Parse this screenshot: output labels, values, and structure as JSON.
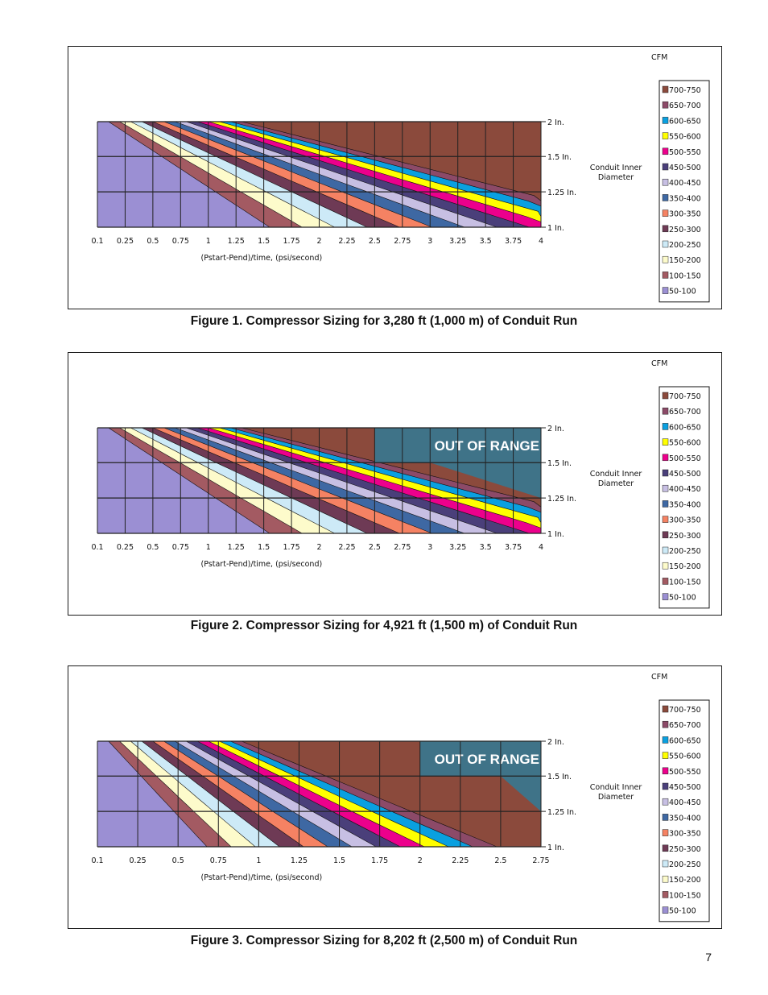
{
  "page": {
    "number": "7"
  },
  "legend": {
    "title": "CFM",
    "entries": [
      {
        "label": "700-750",
        "color": "#8b4a3c"
      },
      {
        "label": "650-700",
        "color": "#8c4a68"
      },
      {
        "label": "600-650",
        "color": "#0aa0e0"
      },
      {
        "label": "550-600",
        "color": "#ffff00"
      },
      {
        "label": "500-550",
        "color": "#ec008c"
      },
      {
        "label": "450-500",
        "color": "#4a3f7a"
      },
      {
        "label": "400-450",
        "color": "#c7bfe3"
      },
      {
        "label": "350-400",
        "color": "#3e68a3"
      },
      {
        "label": "300-350",
        "color": "#f58263"
      },
      {
        "label": "250-300",
        "color": "#6e3a55"
      },
      {
        "label": "200-250",
        "color": "#cdeaf7"
      },
      {
        "label": "150-200",
        "color": "#fdfbcb"
      },
      {
        "label": "100-150",
        "color": "#a35a62"
      },
      {
        "label": "50-100",
        "color": "#9b8fd3"
      }
    ]
  },
  "out_of_range": {
    "label": "OUT OF RANGE",
    "color": "#3f7388"
  },
  "chart_data": [
    {
      "type": "heatmap",
      "title": "Figure 1. Compressor Sizing for 3,280 ft (1,000 m) of Conduit Run",
      "xlabel": "(Pstart-Pend)/time, (psi/second)",
      "ylabel": "Conduit Inner Diameter",
      "x_ticks": [
        "0.1",
        "0.25",
        "0.5",
        "0.75",
        "1",
        "1.25",
        "1.5",
        "1.75",
        "2",
        "2.25",
        "2.5",
        "2.75",
        "3",
        "3.25",
        "3.5",
        "3.75",
        "4"
      ],
      "y_ticks": [
        "2 In.",
        "1.5 In.",
        "1.25 In.",
        "1 In."
      ],
      "boundary_first_index": [
        0,
        0,
        1,
        2,
        3
      ],
      "boundaries": [
        [
          -1.6,
          -0.9,
          0.0,
          0.8,
          1.3,
          2.0,
          2.6,
          3.0,
          3.2,
          3.3,
          3.4,
          3.45,
          3.48
        ],
        [
          0.5,
          1.0,
          1.3,
          2.1,
          2.8,
          3.3,
          3.6,
          3.8,
          3.9,
          3.95,
          3.98
        ],
        [
          1.1,
          1.7,
          2.3,
          3.0,
          3.5,
          3.78,
          3.92
        ],
        [
          1.6,
          2.2,
          2.9,
          3.4,
          3.7,
          3.88
        ],
        [
          2.1,
          2.8,
          3.3,
          3.65
        ]
      ],
      "band_base_index": 0,
      "out_of_range": null
    },
    {
      "type": "heatmap",
      "title": "Figure 2. Compressor Sizing for 4,921 ft (1,500 m) of Conduit Run",
      "xlabel": "(Pstart-Pend)/time, (psi/second)",
      "ylabel": "Conduit Inner Diameter",
      "x_ticks": [
        "0.1",
        "0.25",
        "0.5",
        "0.75",
        "1",
        "1.25",
        "1.5",
        "1.75",
        "2",
        "2.25",
        "2.5",
        "2.75",
        "3",
        "3.25",
        "3.5",
        "3.75",
        "4"
      ],
      "y_ticks": [
        "2 In.",
        "1.5 In.",
        "1.25 In.",
        "1 In."
      ],
      "boundary_first_index": [
        0,
        0,
        1,
        2,
        3
      ],
      "boundaries": [
        [
          -0.5,
          0.2,
          1.0,
          1.7,
          2.3,
          2.8,
          3.1,
          3.25,
          3.33,
          3.38,
          3.42,
          3.45,
          3.47
        ],
        [
          1.3,
          1.9,
          2.6,
          3.2,
          3.55,
          3.75,
          3.85,
          3.9,
          3.93,
          3.95,
          3.96
        ],
        [
          2.0,
          2.6,
          3.2,
          3.6,
          3.8,
          3.9,
          3.95
        ],
        [
          2.6,
          3.2,
          3.6,
          3.82,
          3.92,
          3.97
        ],
        [
          3.1,
          3.55,
          3.82,
          3.93,
          3.97
        ]
      ],
      "band_base_index": 0,
      "out_of_range": {
        "x_start": 2.5,
        "band": "upper-right"
      }
    },
    {
      "type": "heatmap",
      "title": "Figure 3. Compressor Sizing for 8,202 ft (2,500 m) of Conduit Run",
      "xlabel": "(Pstart-Pend)/time, (psi/second)",
      "ylabel": "Conduit Inner Diameter",
      "x_ticks": [
        "0.1",
        "0.25",
        "0.5",
        "0.75",
        "1",
        "1.25",
        "1.5",
        "1.75",
        "2",
        "2.25",
        "2.5",
        "2.75"
      ],
      "y_ticks": [
        "2 In.",
        "1.5 In.",
        "1.25 In.",
        "1 In."
      ],
      "boundary_first_index": [
        0,
        0,
        1,
        2,
        3
      ],
      "boundaries": [
        [
          0.2,
          0.9,
          1.6,
          2.0,
          2.3,
          2.45,
          2.55,
          2.6,
          2.63,
          2.66,
          2.68,
          2.7,
          2.72
        ],
        [
          1.5,
          2.1,
          2.45,
          2.6,
          2.67,
          2.7,
          2.72,
          2.73,
          2.74,
          2.745,
          2.748
        ],
        [
          2.1,
          2.5,
          2.65,
          2.7,
          2.73,
          2.74,
          2.745
        ],
        [
          2.45,
          2.65,
          2.71,
          2.735,
          2.745,
          2.748
        ],
        [
          2.6,
          2.7,
          2.735,
          2.746,
          2.749
        ]
      ],
      "band_base_index": 0,
      "out_of_range": {
        "x_start": 2.0,
        "band": "upper-right"
      }
    }
  ]
}
